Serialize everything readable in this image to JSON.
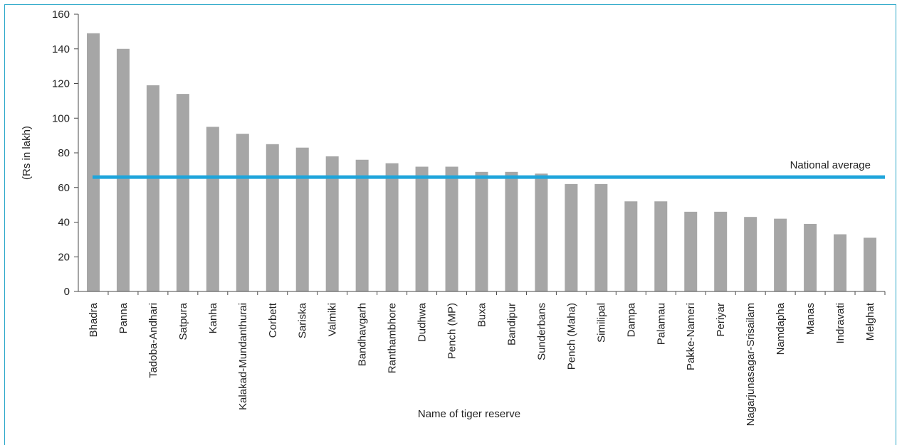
{
  "chart_data": {
    "type": "bar",
    "title": "",
    "xlabel": "Name of tiger reserve",
    "ylabel": "(Rs in lakh)",
    "ylim": [
      0,
      160
    ],
    "yticks": [
      0,
      20,
      40,
      60,
      80,
      100,
      120,
      140,
      160
    ],
    "grid": false,
    "categories": [
      "Bhadra",
      "Panna",
      "Tadoba-Andhari",
      "Satpura",
      "Kanha",
      "Kalakad-Mundanthurai",
      "Corbett",
      "Sariska",
      "Valmiki",
      "Bandhavgarh",
      "Ranthambhore",
      "Dudhwa",
      "Pench (MP)",
      "Buxa",
      "Bandipur",
      "Sunderbans",
      "Pench (Maha)",
      "Similipal",
      "Dampa",
      "Palamau",
      "Pakke-Nameri",
      "Periyar",
      "Nagarjunasagar-Srisailam",
      "Namdapha",
      "Manas",
      "Indravati",
      "Melghat"
    ],
    "values": [
      149,
      140,
      119,
      114,
      95,
      91,
      85,
      83,
      78,
      76,
      74,
      72,
      72,
      69,
      69,
      68,
      62,
      62,
      52,
      52,
      46,
      46,
      43,
      42,
      39,
      33,
      31
    ],
    "bar_color": "#a6a6a6",
    "reference_line": {
      "label": "National average",
      "value": 66,
      "color": "#1fa5db"
    },
    "axis_color": "#4a4a4a"
  }
}
